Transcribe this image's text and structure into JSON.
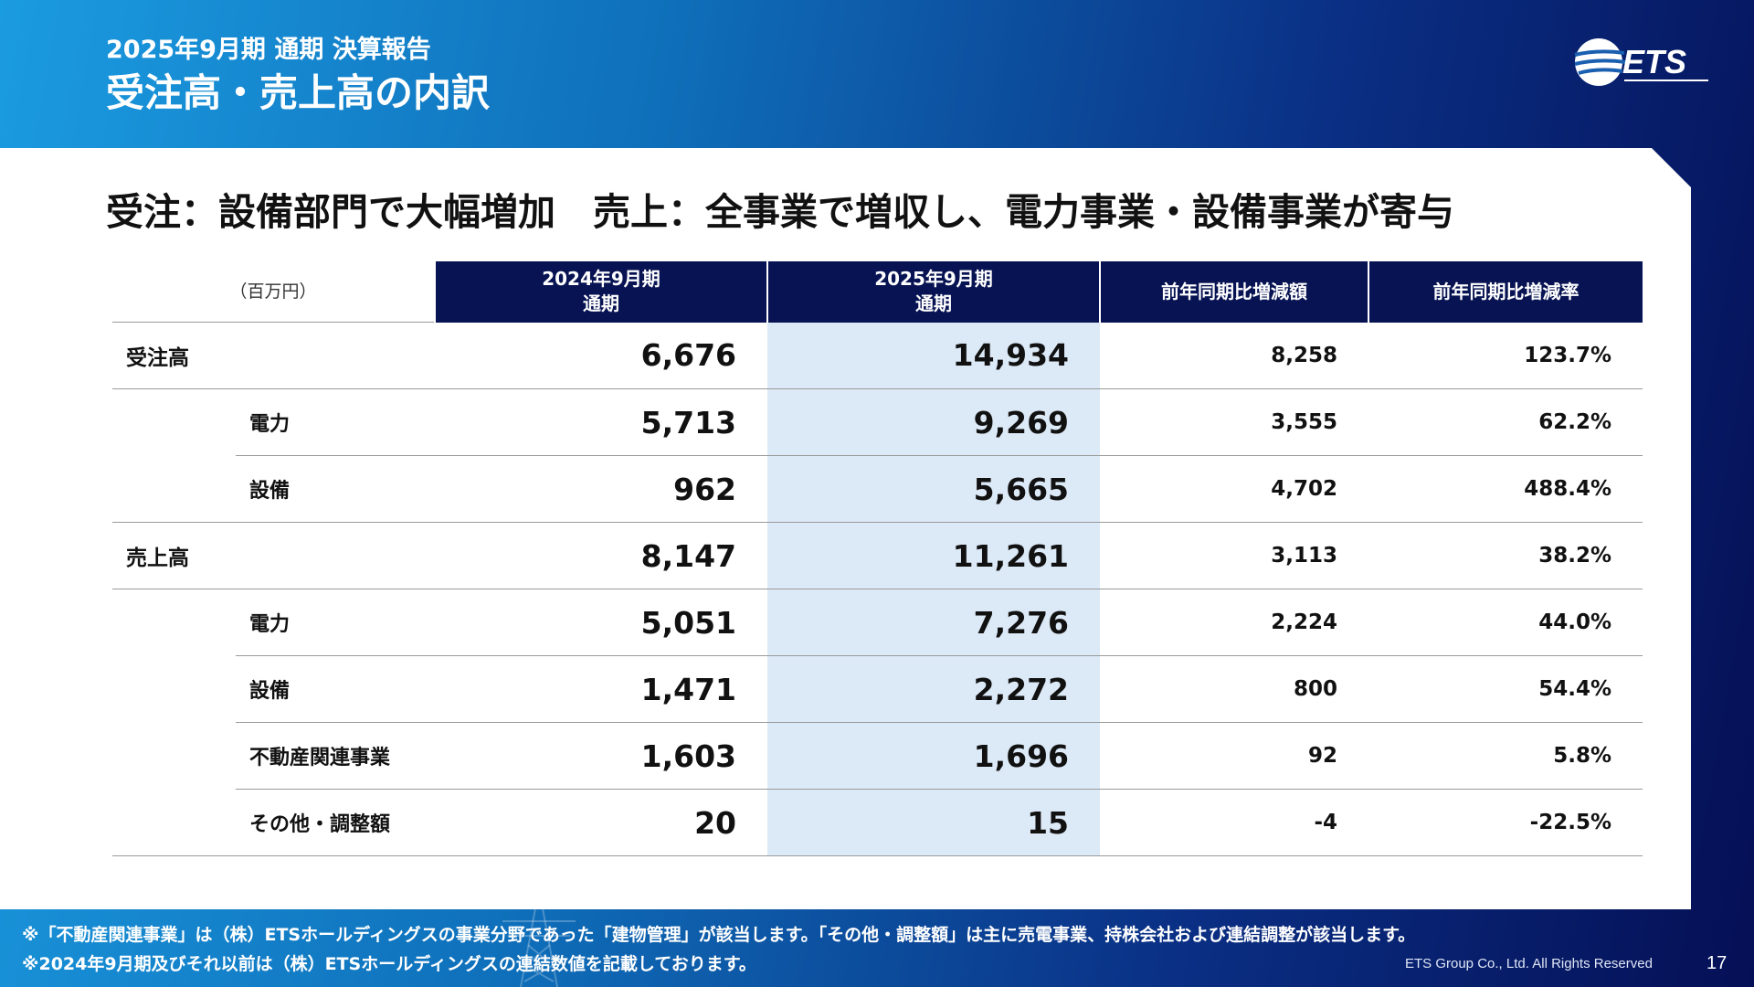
{
  "header": {
    "subtitle": "2025年9月期 通期 決算報告",
    "title": "受注高・売上高の内訳",
    "logo_text": "ETS"
  },
  "headline": "受注：設備部門で大幅増加　売上：全事業で増収し、電力事業・設備事業が寄与",
  "table": {
    "unit": "（百万円）",
    "columns": [
      {
        "line1": "2024年9月期",
        "line2": "通期"
      },
      {
        "line1": "2025年9月期",
        "line2": "通期"
      },
      {
        "line1": "前年同期比増減額",
        "line2": ""
      },
      {
        "line1": "前年同期比増減率",
        "line2": ""
      }
    ],
    "rows": [
      {
        "label": "受注高",
        "level": "category",
        "prev": "6,676",
        "curr": "14,934",
        "diff": "8,258",
        "rate": "123.7%"
      },
      {
        "label": "電力",
        "level": "sub",
        "prev": "5,713",
        "curr": "9,269",
        "diff": "3,555",
        "rate": "62.2%"
      },
      {
        "label": "設備",
        "level": "sub",
        "prev": "962",
        "curr": "5,665",
        "diff": "4,702",
        "rate": "488.4%"
      },
      {
        "label": "売上高",
        "level": "category",
        "prev": "8,147",
        "curr": "11,261",
        "diff": "3,113",
        "rate": "38.2%"
      },
      {
        "label": "電力",
        "level": "sub",
        "prev": "5,051",
        "curr": "7,276",
        "diff": "2,224",
        "rate": "44.0%"
      },
      {
        "label": "設備",
        "level": "sub",
        "prev": "1,471",
        "curr": "2,272",
        "diff": "800",
        "rate": "54.4%"
      },
      {
        "label": "不動産関連事業",
        "level": "sub",
        "prev": "1,603",
        "curr": "1,696",
        "diff": "92",
        "rate": "5.8%"
      },
      {
        "label": "その他・調整額",
        "level": "sub",
        "prev": "20",
        "curr": "15",
        "diff": "-4",
        "rate": "-22.5%"
      }
    ]
  },
  "footer": {
    "note1": "※「不動産関連事業」は（株）ETSホールディングスの事業分野であった「建物管理」が該当します。「その他・調整額」は主に売電事業、持株会社および連結調整が該当します。",
    "note2": "※2024年9月期及びそれ以前は（株）ETSホールディングスの連結数値を記載しております。",
    "copyright": "ETS Group Co., Ltd. All Rights Reserved",
    "page_number": "17"
  },
  "colors": {
    "header_dark": "#071353",
    "highlight_column": "#dce9f6",
    "gradient_light": "#1b9be0",
    "gradient_dark": "#050f55"
  }
}
